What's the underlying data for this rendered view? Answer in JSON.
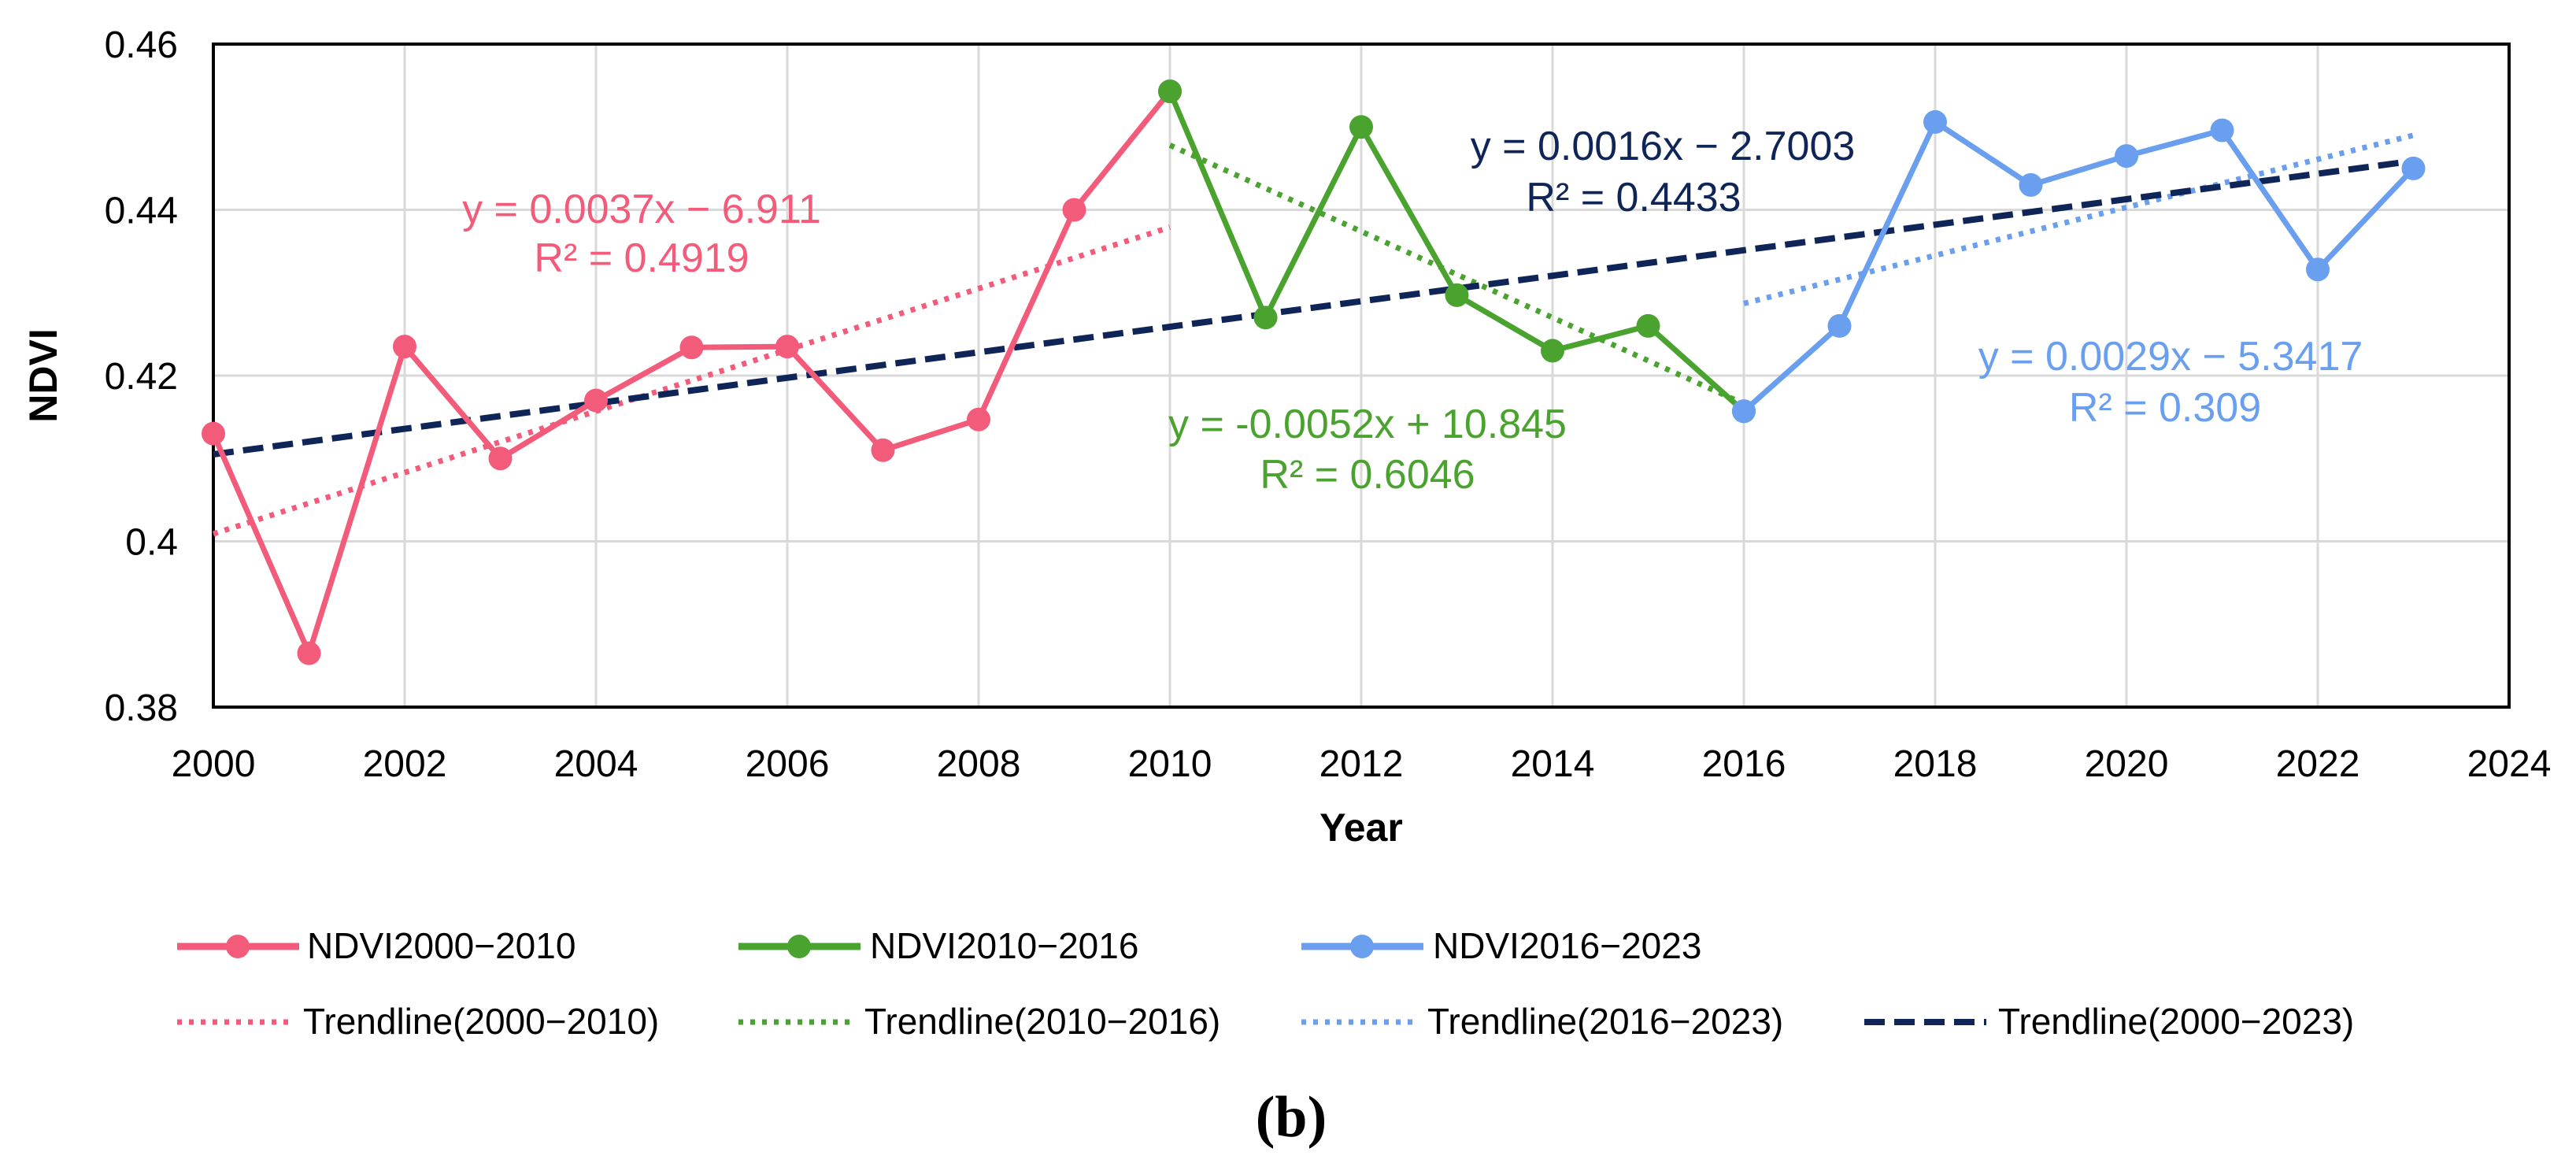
{
  "chart_data": {
    "type": "line",
    "xlabel": "Year",
    "ylabel": "NDVI",
    "xlim": [
      2000,
      2024
    ],
    "ylim": [
      0.38,
      0.46
    ],
    "x_ticks": [
      2000,
      2002,
      2004,
      2006,
      2008,
      2010,
      2012,
      2014,
      2016,
      2018,
      2020,
      2022,
      2024
    ],
    "y_ticks": [
      0.38,
      0.4,
      0.42,
      0.44,
      0.46
    ],
    "x_tick_labels": [
      "2000",
      "2002",
      "2004",
      "2006",
      "2008",
      "2010",
      "2012",
      "2014",
      "2016",
      "2018",
      "2020",
      "2022",
      "2024"
    ],
    "y_tick_labels": [
      "0.38",
      "0.4",
      "0.42",
      "0.44",
      "0.46"
    ],
    "grid": true,
    "legend_position": "bottom",
    "caption": "(b)",
    "series": [
      {
        "name": "NDVI2000−2010",
        "color": "#f25c7a",
        "x": [
          2000,
          2001,
          2002,
          2003,
          2004,
          2005,
          2006,
          2007,
          2008,
          2009,
          2010
        ],
        "y": [
          0.413,
          0.3865,
          0.4235,
          0.41,
          0.417,
          0.4234,
          0.4235,
          0.411,
          0.4147,
          0.44,
          0.4543
        ]
      },
      {
        "name": "NDVI2010−2016",
        "color": "#4aa32e",
        "x": [
          2010,
          2011,
          2012,
          2013,
          2014,
          2015,
          2016
        ],
        "y": [
          0.4543,
          0.427,
          0.45,
          0.4297,
          0.423,
          0.426,
          0.4157
        ]
      },
      {
        "name": "NDVI2016−2023",
        "color": "#6a9eee",
        "x": [
          2016,
          2017,
          2018,
          2019,
          2020,
          2021,
          2022,
          2023
        ],
        "y": [
          0.4157,
          0.426,
          0.4506,
          0.443,
          0.4465,
          0.4496,
          0.4328,
          0.445
        ]
      }
    ],
    "trendlines": [
      {
        "name": "Trendline(2000−2010)",
        "color": "#f25c7a",
        "style": "dotted",
        "x_start": 2000,
        "x_end": 2010,
        "y_start": 0.4009,
        "y_end": 0.4379,
        "equation": "y = 0.0037x − 6.911",
        "r2": "R² = 0.4919"
      },
      {
        "name": "Trendline(2010−2016)",
        "color": "#4aa32e",
        "style": "dotted",
        "x_start": 2010,
        "x_end": 2016,
        "y_start": 0.4478,
        "y_end": 0.4166,
        "equation": "y = -0.0052x + 10.845",
        "r2": "R² = 0.6046"
      },
      {
        "name": "Trendline(2016−2023)",
        "color": "#6a9eee",
        "style": "dotted",
        "x_start": 2016,
        "x_end": 2023,
        "y_start": 0.4287,
        "y_end": 0.449,
        "equation": "y = 0.0029x − 5.3417",
        "r2": "R² = 0.309"
      },
      {
        "name": "Trendline(2000−2023)",
        "color": "#0f2557",
        "style": "dashed",
        "x_start": 2000,
        "x_end": 2023,
        "y_start": 0.4105,
        "y_end": 0.4459,
        "equation": "y = 0.0016x − 2.7003",
        "r2": "R² = 0.4433"
      }
    ]
  }
}
